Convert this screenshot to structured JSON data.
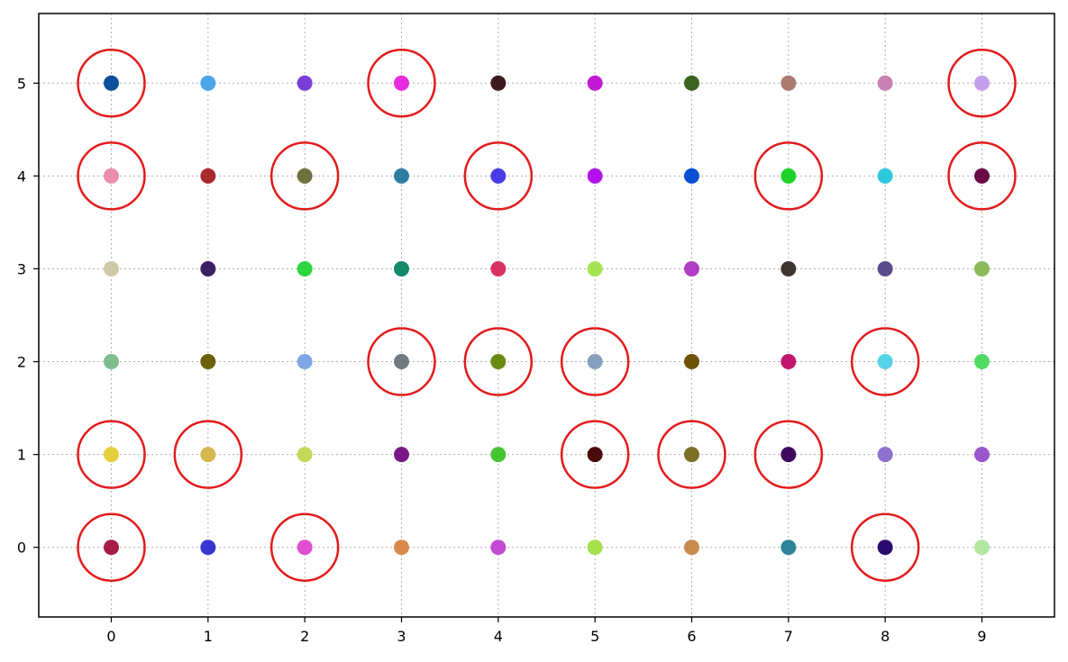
{
  "chart_data": {
    "type": "scatter",
    "title": "",
    "xlabel": "",
    "ylabel": "",
    "xlim": [
      -0.75,
      9.75
    ],
    "ylim": [
      -0.75,
      5.75
    ],
    "xticks": [
      0,
      1,
      2,
      3,
      4,
      5,
      6,
      7,
      8,
      9
    ],
    "yticks": [
      0,
      1,
      2,
      3,
      4,
      5
    ],
    "grid": true,
    "grid_style": "dotted",
    "highlight_color": "#e31a1c",
    "points": [
      {
        "x": 0,
        "y": 0,
        "color": "#a61c47",
        "highlighted": true
      },
      {
        "x": 1,
        "y": 0,
        "color": "#3a34d0",
        "highlighted": false
      },
      {
        "x": 2,
        "y": 0,
        "color": "#e04ed0",
        "highlighted": true
      },
      {
        "x": 3,
        "y": 0,
        "color": "#d98a4b",
        "highlighted": false
      },
      {
        "x": 4,
        "y": 0,
        "color": "#c24cd1",
        "highlighted": false
      },
      {
        "x": 5,
        "y": 0,
        "color": "#a6e04c",
        "highlighted": false
      },
      {
        "x": 6,
        "y": 0,
        "color": "#c98a4e",
        "highlighted": false
      },
      {
        "x": 7,
        "y": 0,
        "color": "#2e8595",
        "highlighted": false
      },
      {
        "x": 8,
        "y": 0,
        "color": "#2a0a70",
        "highlighted": true
      },
      {
        "x": 9,
        "y": 0,
        "color": "#b3e6a3",
        "highlighted": false
      },
      {
        "x": 0,
        "y": 1,
        "color": "#e3d03a",
        "highlighted": true
      },
      {
        "x": 1,
        "y": 1,
        "color": "#d6b84c",
        "highlighted": true
      },
      {
        "x": 2,
        "y": 1,
        "color": "#c4d85a",
        "highlighted": false
      },
      {
        "x": 3,
        "y": 1,
        "color": "#7a1a8a",
        "highlighted": false
      },
      {
        "x": 4,
        "y": 1,
        "color": "#47c434",
        "highlighted": false
      },
      {
        "x": 5,
        "y": 1,
        "color": "#4a0a0a",
        "highlighted": true
      },
      {
        "x": 6,
        "y": 1,
        "color": "#7a7026",
        "highlighted": true
      },
      {
        "x": 7,
        "y": 1,
        "color": "#3e0a5e",
        "highlighted": true
      },
      {
        "x": 8,
        "y": 1,
        "color": "#9070d0",
        "highlighted": false
      },
      {
        "x": 9,
        "y": 1,
        "color": "#9a55cc",
        "highlighted": false
      },
      {
        "x": 0,
        "y": 2,
        "color": "#7ebd8e",
        "highlighted": false
      },
      {
        "x": 1,
        "y": 2,
        "color": "#6b600a",
        "highlighted": false
      },
      {
        "x": 2,
        "y": 2,
        "color": "#7fa6e8",
        "highlighted": false
      },
      {
        "x": 3,
        "y": 2,
        "color": "#6e7b80",
        "highlighted": true
      },
      {
        "x": 4,
        "y": 2,
        "color": "#6b8a12",
        "highlighted": true
      },
      {
        "x": 5,
        "y": 2,
        "color": "#86a0be",
        "highlighted": true
      },
      {
        "x": 6,
        "y": 2,
        "color": "#6e5206",
        "highlighted": false
      },
      {
        "x": 7,
        "y": 2,
        "color": "#c4166e",
        "highlighted": false
      },
      {
        "x": 8,
        "y": 2,
        "color": "#55d3e8",
        "highlighted": true
      },
      {
        "x": 9,
        "y": 2,
        "color": "#4fdc62",
        "highlighted": false
      },
      {
        "x": 0,
        "y": 3,
        "color": "#cfcaa5",
        "highlighted": false
      },
      {
        "x": 1,
        "y": 3,
        "color": "#3a2060",
        "highlighted": false
      },
      {
        "x": 2,
        "y": 3,
        "color": "#2ed43e",
        "highlighted": false
      },
      {
        "x": 3,
        "y": 3,
        "color": "#108a6a",
        "highlighted": false
      },
      {
        "x": 4,
        "y": 3,
        "color": "#d83262",
        "highlighted": false
      },
      {
        "x": 5,
        "y": 3,
        "color": "#a4e452",
        "highlighted": false
      },
      {
        "x": 6,
        "y": 3,
        "color": "#b03ec4",
        "highlighted": false
      },
      {
        "x": 7,
        "y": 3,
        "color": "#3e3432",
        "highlighted": false
      },
      {
        "x": 8,
        "y": 3,
        "color": "#5a4c8a",
        "highlighted": false
      },
      {
        "x": 9,
        "y": 3,
        "color": "#8ab85a",
        "highlighted": false
      },
      {
        "x": 0,
        "y": 4,
        "color": "#ea8cac",
        "highlighted": true
      },
      {
        "x": 1,
        "y": 4,
        "color": "#a82a2e",
        "highlighted": false
      },
      {
        "x": 2,
        "y": 4,
        "color": "#6e7240",
        "highlighted": true
      },
      {
        "x": 3,
        "y": 4,
        "color": "#2e7ea0",
        "highlighted": false
      },
      {
        "x": 4,
        "y": 4,
        "color": "#4a3ae6",
        "highlighted": true
      },
      {
        "x": 5,
        "y": 4,
        "color": "#b410ea",
        "highlighted": false
      },
      {
        "x": 6,
        "y": 4,
        "color": "#0a4ed4",
        "highlighted": false
      },
      {
        "x": 7,
        "y": 4,
        "color": "#1ed42a",
        "highlighted": true
      },
      {
        "x": 8,
        "y": 4,
        "color": "#2ec8dc",
        "highlighted": false
      },
      {
        "x": 9,
        "y": 4,
        "color": "#6a0a46",
        "highlighted": true
      },
      {
        "x": 0,
        "y": 5,
        "color": "#0a4f9c",
        "highlighted": true
      },
      {
        "x": 1,
        "y": 5,
        "color": "#4aa6e8",
        "highlighted": false
      },
      {
        "x": 2,
        "y": 5,
        "color": "#7a3ed8",
        "highlighted": false
      },
      {
        "x": 3,
        "y": 5,
        "color": "#e82ce0",
        "highlighted": true
      },
      {
        "x": 4,
        "y": 5,
        "color": "#3e1a1e",
        "highlighted": false
      },
      {
        "x": 5,
        "y": 5,
        "color": "#c21ad4",
        "highlighted": false
      },
      {
        "x": 6,
        "y": 5,
        "color": "#3e6422",
        "highlighted": false
      },
      {
        "x": 7,
        "y": 5,
        "color": "#a87c70",
        "highlighted": false
      },
      {
        "x": 8,
        "y": 5,
        "color": "#c882b4",
        "highlighted": false
      },
      {
        "x": 9,
        "y": 5,
        "color": "#c4a0ec",
        "highlighted": true
      }
    ]
  }
}
